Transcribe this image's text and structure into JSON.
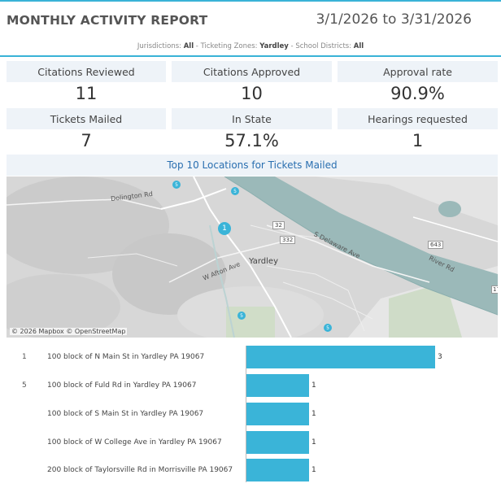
{
  "header": {
    "title": "MONTHLY ACTIVITY REPORT",
    "date_range": "3/1/2026 to 3/31/2026",
    "filters": {
      "jurisdictions_label": "Jurisdictions:",
      "jurisdictions_value": "All",
      "zones_label": "Ticketing Zones:",
      "zones_value": "Yardley",
      "districts_label": "School Districts:",
      "districts_value": "All",
      "sep": " - "
    }
  },
  "kpis": [
    {
      "label": "Citations Reviewed",
      "value": "11"
    },
    {
      "label": "Citations Approved",
      "value": "10"
    },
    {
      "label": "Approval rate",
      "value": "90.9%"
    },
    {
      "label": "Tickets Mailed",
      "value": "7"
    },
    {
      "label": "In State",
      "value": "57.1%"
    },
    {
      "label": "Hearings requested",
      "value": "1"
    }
  ],
  "map": {
    "title": "Top 10  Locations for Tickets Mailed",
    "credit": "© 2026 Mapbox © OpenStreetMap",
    "labels": {
      "dolington": "Dolington Rd",
      "yardley": "Yardley",
      "w_afton": "W Afton Ave",
      "s_delaware": "S Delaware Ave",
      "river_rd": "River Rd",
      "route32": "32",
      "route332": "332",
      "route643": "643",
      "route17": "17"
    },
    "markers": [
      "5",
      "1",
      "5",
      "5",
      "5"
    ]
  },
  "chart_data": {
    "type": "bar",
    "orientation": "horizontal",
    "ranks": [
      "1",
      "5",
      "",
      "",
      ""
    ],
    "categories": [
      "100 block of N Main St in Yardley PA 19067",
      "100 block of Fuld Rd in Yardley PA 19067",
      "100 block of S Main St in Yardley PA 19067",
      "100 block of W College Ave in Yardley PA 19067",
      "200 block of Taylorsville Rd in Morrisville PA 19067"
    ],
    "values": [
      3,
      1,
      1,
      1,
      1
    ],
    "value_labels": [
      "3",
      "1",
      "1",
      "1",
      "1"
    ],
    "xlim": [
      0,
      3.7
    ],
    "bar_color": "#3ab4d8"
  }
}
